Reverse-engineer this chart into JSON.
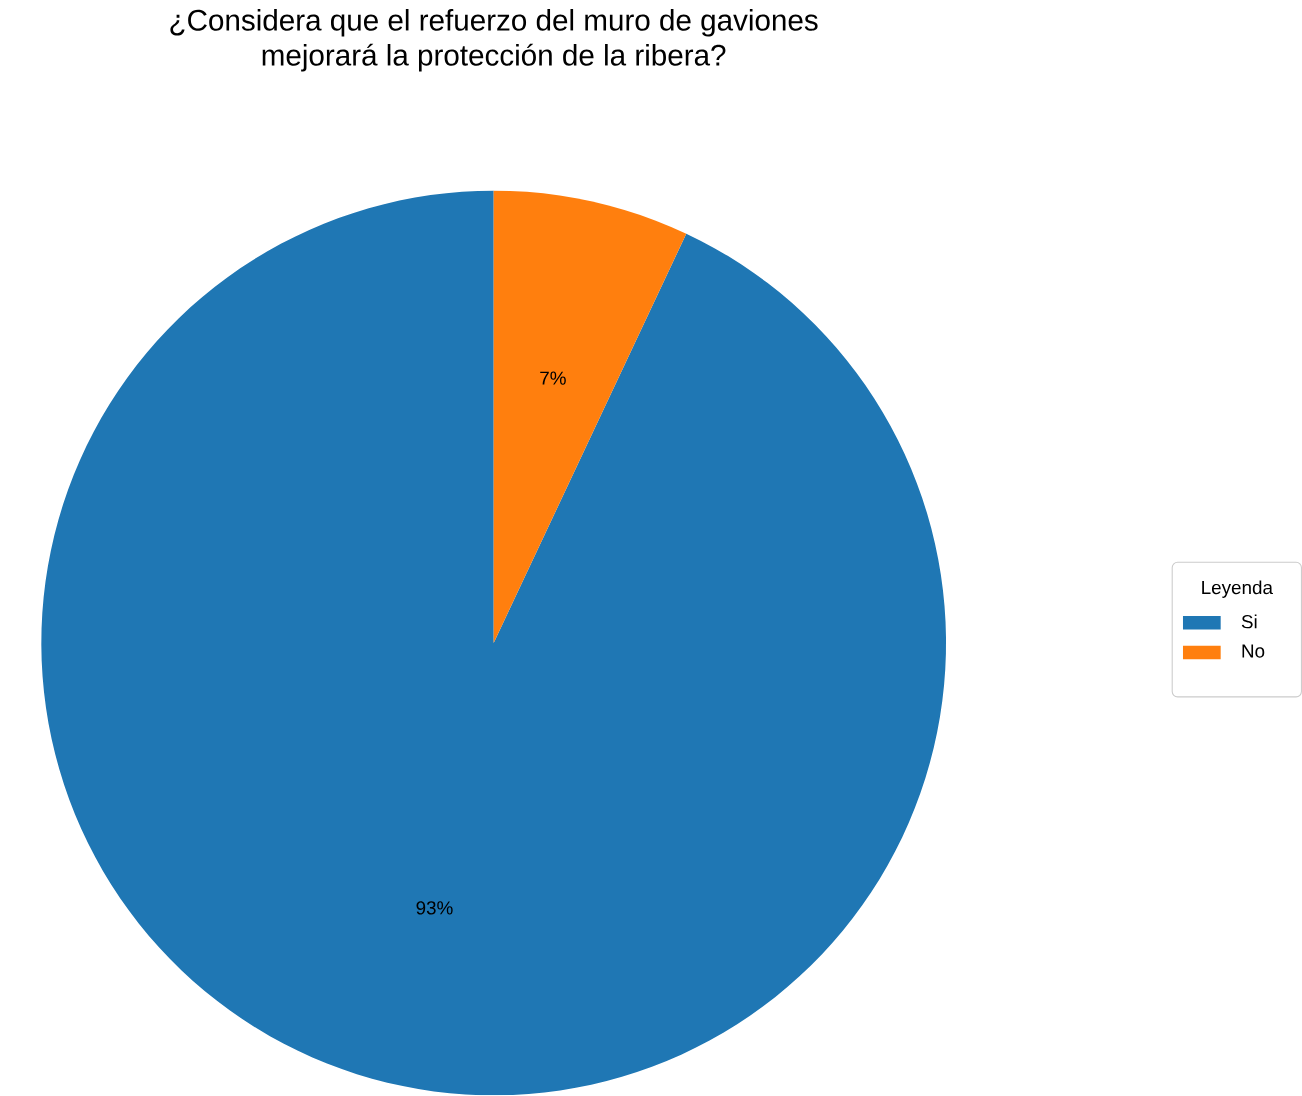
{
  "chart_data": {
    "type": "pie",
    "title": "¿Considera que el refuerzo del muro de gaviones\nmejorará la protección de la ribera?",
    "categories": [
      "Si",
      "No"
    ],
    "values": [
      93,
      7
    ],
    "value_labels": [
      "93%",
      "7%"
    ],
    "colors": [
      "#1f77b4",
      "#ff7f0e"
    ],
    "legend_title": "Leyenda",
    "legend": "right"
  }
}
